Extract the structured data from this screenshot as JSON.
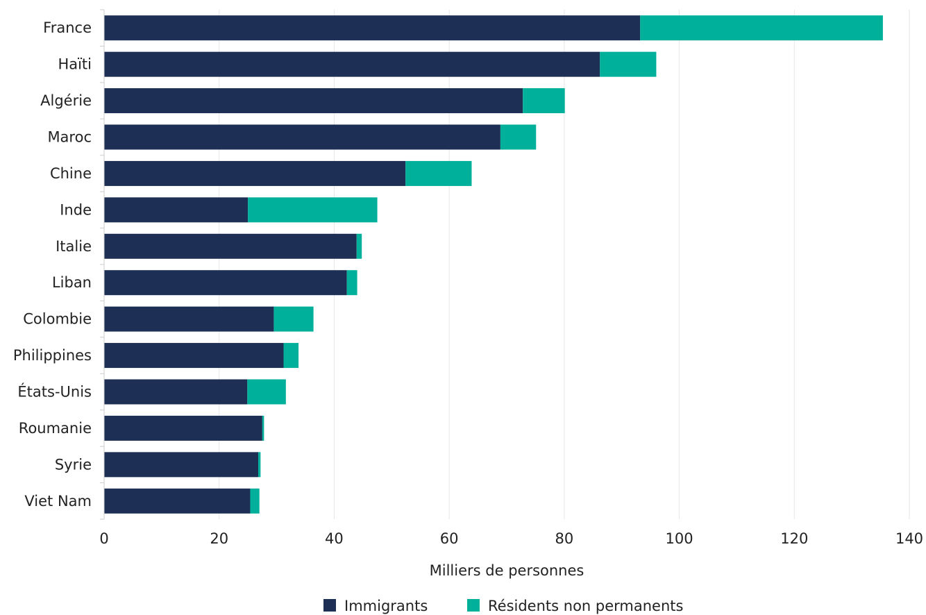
{
  "chart_data": {
    "type": "bar",
    "orientation": "horizontal",
    "stacked": true,
    "title": "",
    "xlabel": "Milliers de personnes",
    "ylabel": "",
    "xlim": [
      0,
      140
    ],
    "xticks": [
      "0",
      "20",
      "40",
      "60",
      "80",
      "100",
      "120",
      "140"
    ],
    "grid": "vertical",
    "legend_position": "bottom",
    "categories": [
      "France",
      "Haïti",
      "Algérie",
      "Maroc",
      "Chine",
      "Inde",
      "Italie",
      "Liban",
      "Colombie",
      "Philippines",
      "États-Unis",
      "Roumanie",
      "Syrie",
      "Viet Nam"
    ],
    "series": [
      {
        "name": "Immigrants",
        "color": "#1d2f54",
        "values": [
          93.2,
          86.2,
          72.8,
          68.9,
          52.4,
          25.0,
          43.9,
          42.2,
          29.5,
          31.2,
          24.9,
          27.5,
          26.8,
          25.4
        ]
      },
      {
        "name": "Résidents non permanents",
        "color": "#00b09b",
        "values": [
          42.2,
          9.8,
          7.3,
          6.2,
          11.5,
          22.5,
          0.9,
          1.8,
          6.9,
          2.6,
          6.7,
          0.3,
          0.4,
          1.6
        ]
      }
    ]
  }
}
